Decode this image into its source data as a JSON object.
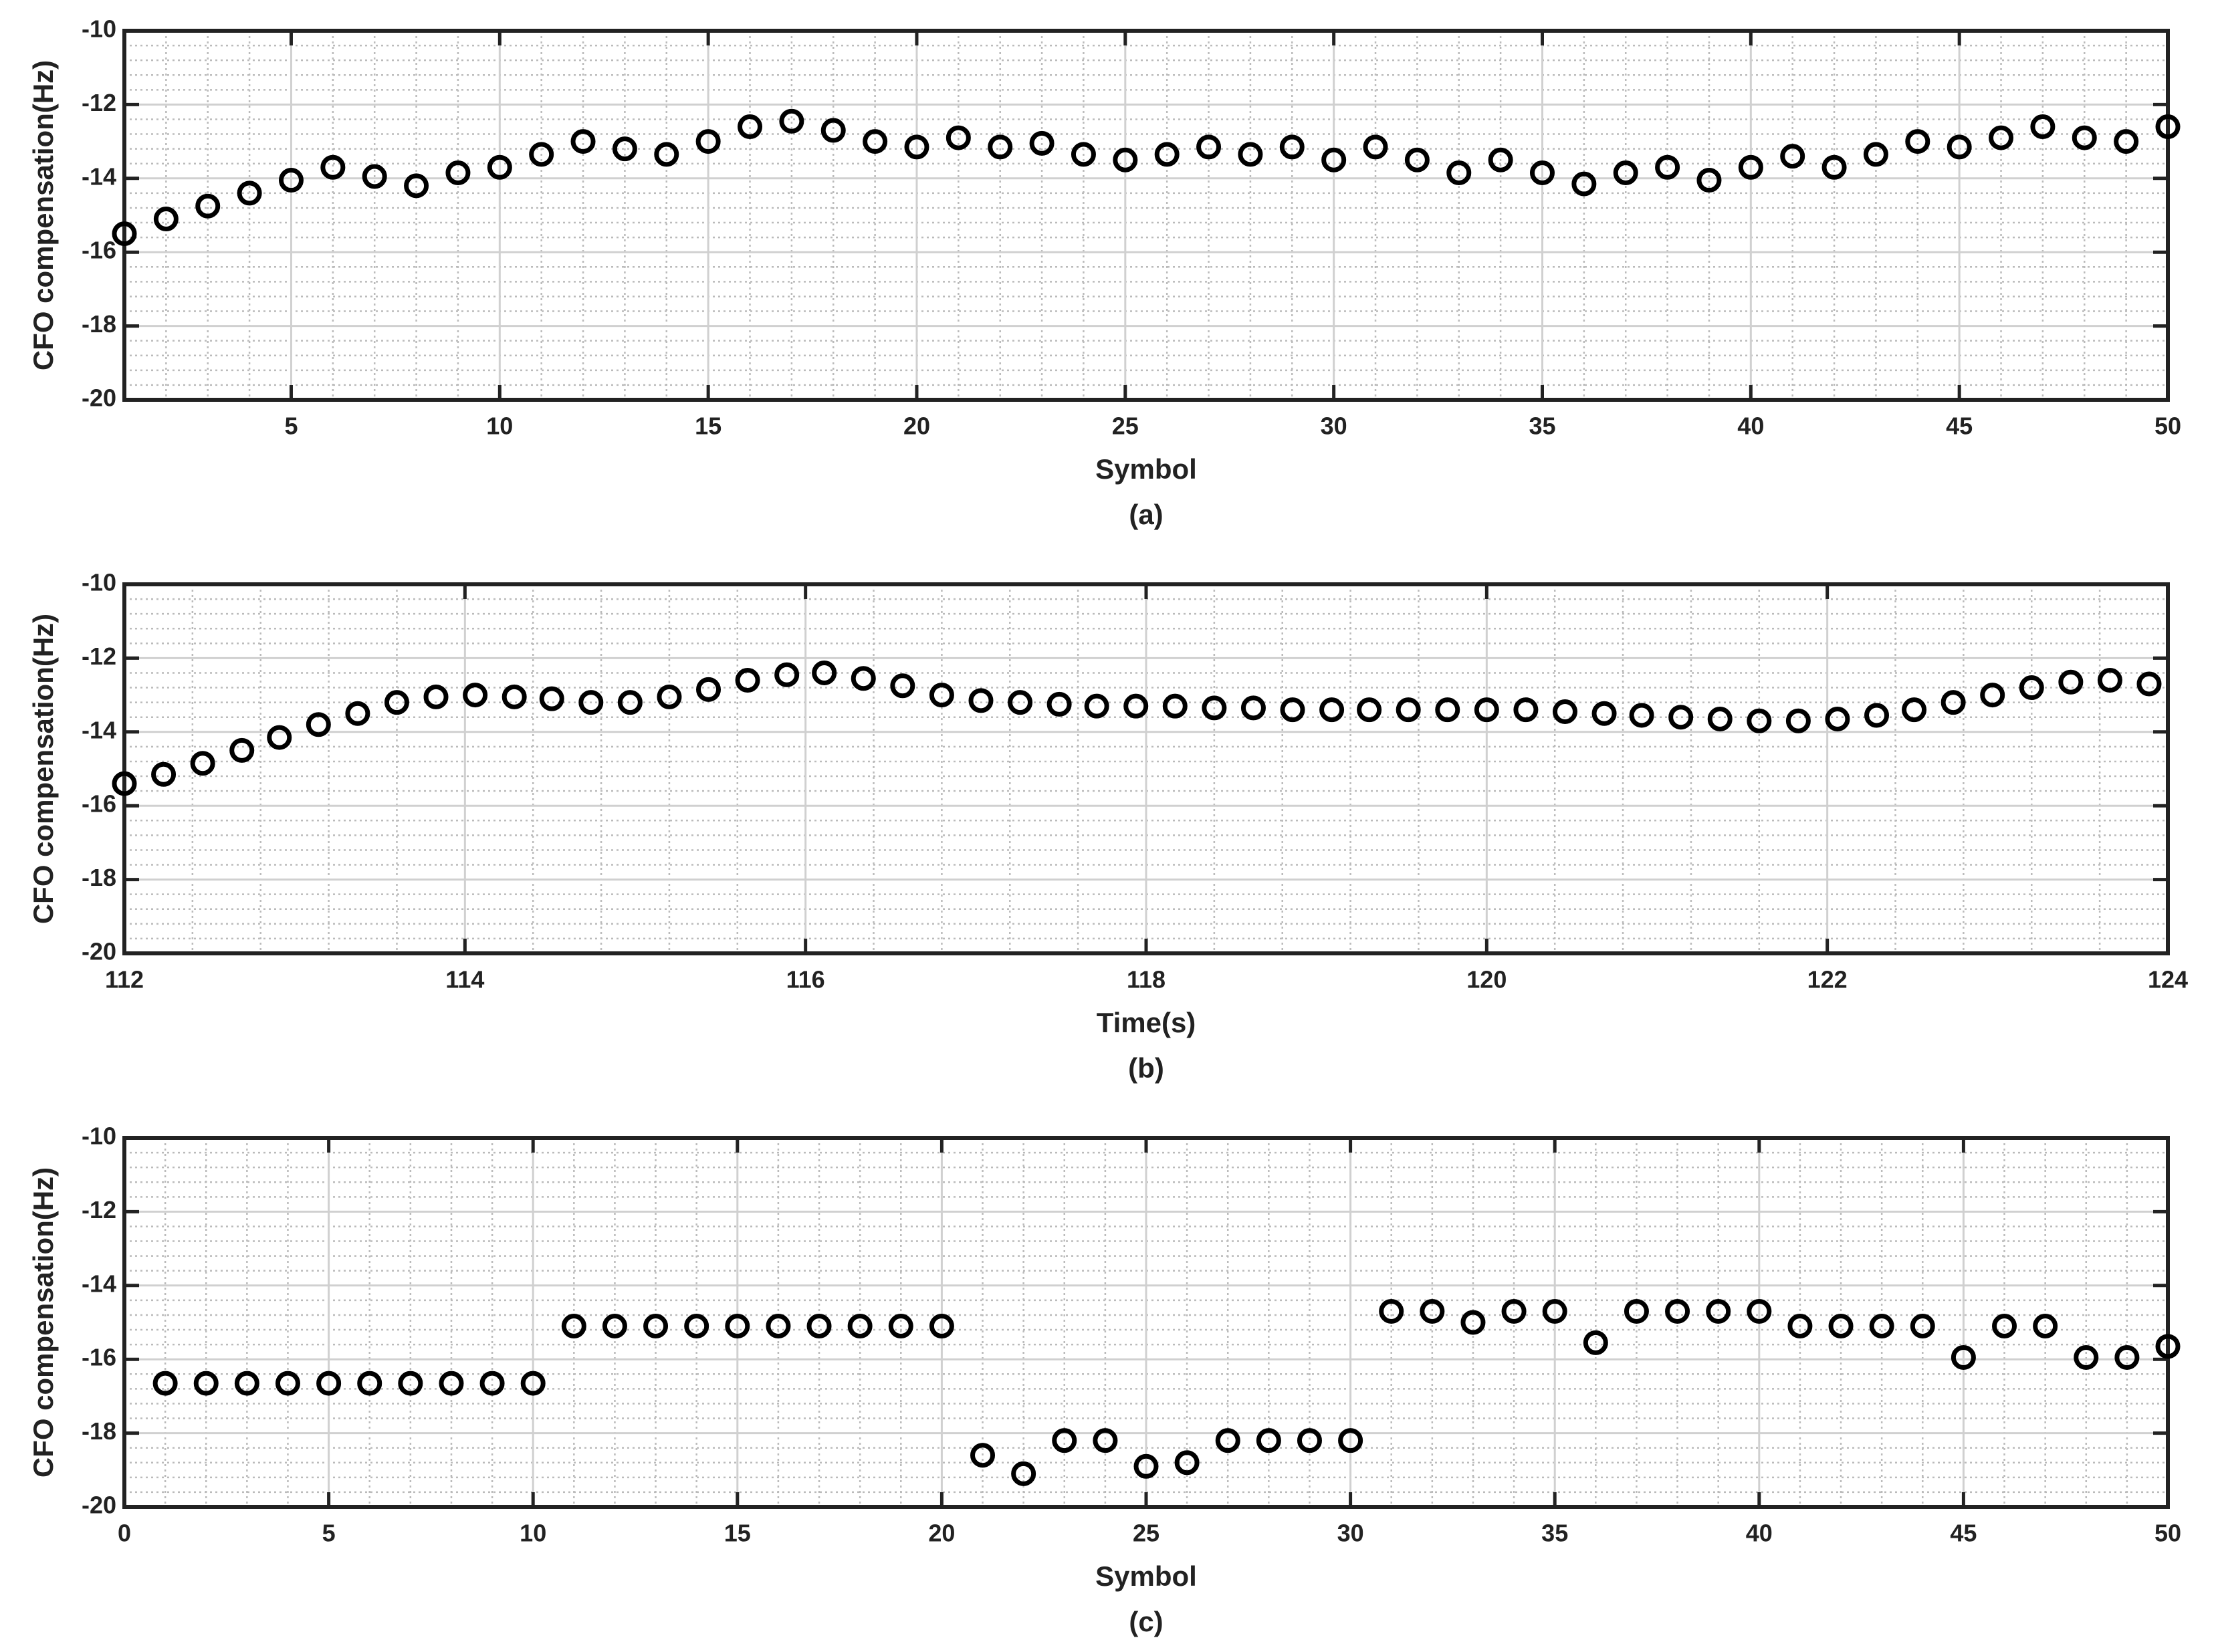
{
  "chart_data": [
    {
      "type": "scatter",
      "xlabel": "Symbol",
      "ylabel": "CFO compensation(Hz)",
      "caption": "(a)",
      "x": [
        1,
        2,
        3,
        4,
        5,
        6,
        7,
        8,
        9,
        10,
        11,
        12,
        13,
        14,
        15,
        16,
        17,
        18,
        19,
        20,
        21,
        22,
        23,
        24,
        25,
        26,
        27,
        28,
        29,
        30,
        31,
        32,
        33,
        34,
        35,
        36,
        37,
        38,
        39,
        40,
        41,
        42,
        43,
        44,
        45,
        46,
        47,
        48,
        49,
        50
      ],
      "values": [
        -15.5,
        -15.1,
        -14.75,
        -14.4,
        -14.05,
        -13.7,
        -13.95,
        -14.2,
        -13.85,
        -13.7,
        -13.35,
        -13.0,
        -13.2,
        -13.35,
        -13.0,
        -12.6,
        -12.45,
        -12.7,
        -13.0,
        -13.15,
        -12.9,
        -13.15,
        -13.05,
        -13.35,
        -13.5,
        -13.35,
        -13.15,
        -13.35,
        -13.15,
        -13.5,
        -13.15,
        -13.5,
        -13.85,
        -13.5,
        -13.85,
        -14.15,
        -13.85,
        -13.7,
        -14.05,
        -13.7,
        -13.4,
        -13.7,
        -13.35,
        -13.0,
        -13.15,
        -12.9,
        -12.6,
        -12.9,
        -13.0,
        -12.6
      ],
      "color": "#000000",
      "xlim": [
        1,
        50
      ],
      "xticks": [
        5,
        10,
        15,
        20,
        25,
        30,
        35,
        40,
        45,
        50
      ],
      "ylim": [
        -20,
        -10
      ],
      "yticks": [
        -20,
        -18,
        -16,
        -14,
        -12,
        -10
      ],
      "grid": true,
      "minor_grid": true
    },
    {
      "type": "scatter",
      "xlabel": "Time(s)",
      "ylabel": "CFO compensation(Hz)",
      "caption": "(b)",
      "x": [
        112,
        112.23,
        112.46,
        112.69,
        112.91,
        113.14,
        113.37,
        113.6,
        113.83,
        114.06,
        114.29,
        114.51,
        114.74,
        114.97,
        115.2,
        115.43,
        115.66,
        115.89,
        116.11,
        116.34,
        116.57,
        116.8,
        117.03,
        117.26,
        117.49,
        117.71,
        117.94,
        118.17,
        118.4,
        118.63,
        118.86,
        119.09,
        119.31,
        119.54,
        119.77,
        120.0,
        120.23,
        120.46,
        120.69,
        120.91,
        121.14,
        121.37,
        121.6,
        121.83,
        122.06,
        122.29,
        122.51,
        122.74,
        122.97,
        123.2,
        123.43,
        123.66,
        123.89
      ],
      "values": [
        -15.4,
        -15.15,
        -14.85,
        -14.5,
        -14.15,
        -13.8,
        -13.5,
        -13.2,
        -13.05,
        -13.0,
        -13.05,
        -13.1,
        -13.2,
        -13.2,
        -13.05,
        -12.85,
        -12.6,
        -12.45,
        -12.4,
        -12.55,
        -12.75,
        -13.0,
        -13.15,
        -13.2,
        -13.25,
        -13.3,
        -13.3,
        -13.3,
        -13.35,
        -13.35,
        -13.4,
        -13.4,
        -13.4,
        -13.4,
        -13.4,
        -13.4,
        -13.4,
        -13.45,
        -13.5,
        -13.55,
        -13.6,
        -13.65,
        -13.7,
        -13.7,
        -13.65,
        -13.55,
        -13.4,
        -13.2,
        -13.0,
        -12.8,
        -12.65,
        -12.6,
        -12.7
      ],
      "color": "#000000",
      "xlim": [
        112,
        124
      ],
      "xticks": [
        112,
        114,
        116,
        118,
        120,
        122,
        124
      ],
      "ylim": [
        -20,
        -10
      ],
      "yticks": [
        -20,
        -18,
        -16,
        -14,
        -12,
        -10
      ],
      "grid": true,
      "minor_grid": true
    },
    {
      "type": "scatter",
      "xlabel": "Symbol",
      "ylabel": "CFO compensation(Hz)",
      "caption": "(c)",
      "x": [
        1,
        2,
        3,
        4,
        5,
        6,
        7,
        8,
        9,
        10,
        11,
        12,
        13,
        14,
        15,
        16,
        17,
        18,
        19,
        20,
        21,
        22,
        23,
        24,
        25,
        26,
        27,
        28,
        29,
        30,
        31,
        32,
        33,
        34,
        35,
        36,
        37,
        38,
        39,
        40,
        41,
        42,
        43,
        44,
        45,
        46,
        47,
        48,
        49,
        50
      ],
      "values": [
        -16.65,
        -16.65,
        -16.65,
        -16.65,
        -16.65,
        -16.65,
        -16.65,
        -16.65,
        -16.65,
        -16.65,
        -15.1,
        -15.1,
        -15.1,
        -15.1,
        -15.1,
        -15.1,
        -15.1,
        -15.1,
        -15.1,
        -15.1,
        -18.6,
        -19.1,
        -18.2,
        -18.2,
        -18.9,
        -18.8,
        -18.2,
        -18.2,
        -18.2,
        -18.2,
        -14.7,
        -14.7,
        -15.0,
        -14.7,
        -14.7,
        -15.55,
        -14.7,
        -14.7,
        -14.7,
        -14.7,
        -15.1,
        -15.1,
        -15.1,
        -15.1,
        -15.95,
        -15.1,
        -15.1,
        -15.95,
        -15.95,
        -15.65
      ],
      "color": "#000000",
      "xlim": [
        0,
        50
      ],
      "xticks": [
        0,
        5,
        10,
        15,
        20,
        25,
        30,
        35,
        40,
        45,
        50
      ],
      "ylim": [
        -20,
        -10
      ],
      "yticks": [
        -20,
        -18,
        -16,
        -14,
        -12,
        -10
      ],
      "grid": true,
      "minor_grid": true
    }
  ]
}
